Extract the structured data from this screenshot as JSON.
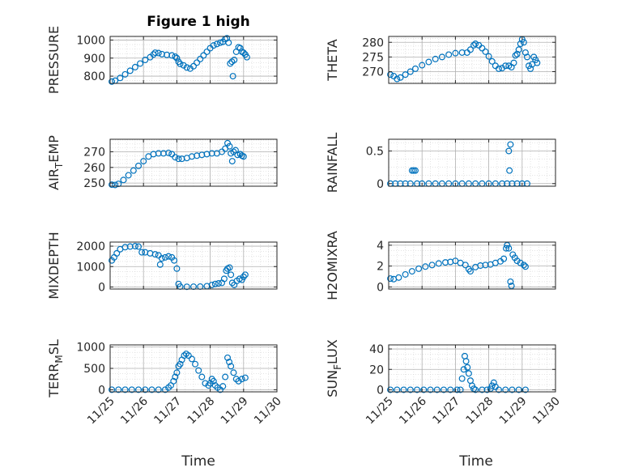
{
  "figure": {
    "title": "Figure 1 high",
    "xlabel": "Time"
  },
  "x_tick_labels": [
    "11/25",
    "11/26",
    "11/27",
    "11/28",
    "11/29",
    "11/30"
  ],
  "colors": {
    "marker": "#0072bd",
    "axis": "#262626",
    "grid": "#b0b0b0",
    "frame_bg": "#ffffff"
  },
  "chart_data": [
    {
      "type": "scatter",
      "ylabel": "PRESSURE",
      "xlim": [
        25,
        30
      ],
      "ylim": [
        760,
        1020
      ],
      "yticks": [
        800,
        900,
        1000
      ],
      "points": [
        [
          25.05,
          770
        ],
        [
          25.15,
          775
        ],
        [
          25.3,
          790
        ],
        [
          25.45,
          810
        ],
        [
          25.6,
          830
        ],
        [
          25.75,
          850
        ],
        [
          25.9,
          870
        ],
        [
          26.05,
          890
        ],
        [
          26.2,
          905
        ],
        [
          26.3,
          920
        ],
        [
          26.35,
          930
        ],
        [
          26.45,
          928
        ],
        [
          26.55,
          922
        ],
        [
          26.7,
          918
        ],
        [
          26.85,
          915
        ],
        [
          26.95,
          908
        ],
        [
          27.0,
          900
        ],
        [
          27.05,
          880
        ],
        [
          27.1,
          868
        ],
        [
          27.2,
          860
        ],
        [
          27.3,
          848
        ],
        [
          27.4,
          842
        ],
        [
          27.5,
          855
        ],
        [
          27.6,
          875
        ],
        [
          27.7,
          895
        ],
        [
          27.8,
          915
        ],
        [
          27.9,
          935
        ],
        [
          28.0,
          955
        ],
        [
          28.1,
          970
        ],
        [
          28.2,
          978
        ],
        [
          28.3,
          985
        ],
        [
          28.38,
          990
        ],
        [
          28.45,
          1005
        ],
        [
          28.5,
          1010
        ],
        [
          28.55,
          985
        ],
        [
          28.6,
          870
        ],
        [
          28.65,
          880
        ],
        [
          28.68,
          800
        ],
        [
          28.72,
          890
        ],
        [
          28.78,
          935
        ],
        [
          28.85,
          960
        ],
        [
          28.9,
          955
        ],
        [
          28.95,
          935
        ],
        [
          29.0,
          930
        ],
        [
          29.05,
          920
        ],
        [
          29.1,
          905
        ]
      ]
    },
    {
      "type": "scatter",
      "ylabel": "THETA",
      "xlim": [
        25,
        30
      ],
      "ylim": [
        266,
        282
      ],
      "yticks": [
        270,
        275,
        280
      ],
      "points": [
        [
          25.05,
          269
        ],
        [
          25.15,
          268.5
        ],
        [
          25.25,
          267.5
        ],
        [
          25.35,
          268
        ],
        [
          25.5,
          269
        ],
        [
          25.65,
          270
        ],
        [
          25.8,
          271
        ],
        [
          26.0,
          272.2
        ],
        [
          26.2,
          273.3
        ],
        [
          26.4,
          274.3
        ],
        [
          26.6,
          275
        ],
        [
          26.8,
          275.8
        ],
        [
          27.0,
          276.3
        ],
        [
          27.2,
          276.5
        ],
        [
          27.35,
          276.5
        ],
        [
          27.45,
          277.5
        ],
        [
          27.55,
          279
        ],
        [
          27.6,
          279.5
        ],
        [
          27.7,
          279
        ],
        [
          27.8,
          278
        ],
        [
          27.9,
          276.8
        ],
        [
          28.0,
          275.2
        ],
        [
          28.1,
          273.5
        ],
        [
          28.2,
          272
        ],
        [
          28.3,
          271
        ],
        [
          28.4,
          271.2
        ],
        [
          28.5,
          272
        ],
        [
          28.6,
          272
        ],
        [
          28.68,
          271.5
        ],
        [
          28.75,
          273
        ],
        [
          28.8,
          275.5
        ],
        [
          28.85,
          276
        ],
        [
          28.9,
          277.5
        ],
        [
          28.95,
          279.5
        ],
        [
          29.0,
          281
        ],
        [
          29.05,
          280
        ],
        [
          29.1,
          276.5
        ],
        [
          29.15,
          275
        ],
        [
          29.2,
          272
        ],
        [
          29.25,
          271
        ],
        [
          29.3,
          272.5
        ],
        [
          29.35,
          275
        ],
        [
          29.4,
          274
        ],
        [
          29.45,
          273
        ]
      ]
    },
    {
      "type": "scatter",
      "ylabel": "AIR_TEMP",
      "xlim": [
        25,
        30
      ],
      "ylim": [
        248,
        278
      ],
      "yticks": [
        250,
        260,
        270
      ],
      "points": [
        [
          25.05,
          249
        ],
        [
          25.15,
          248.8
        ],
        [
          25.25,
          249.5
        ],
        [
          25.4,
          252
        ],
        [
          25.55,
          255
        ],
        [
          25.7,
          258
        ],
        [
          25.85,
          261
        ],
        [
          26.0,
          264
        ],
        [
          26.15,
          267
        ],
        [
          26.3,
          268.5
        ],
        [
          26.45,
          269
        ],
        [
          26.6,
          269
        ],
        [
          26.75,
          269.3
        ],
        [
          26.85,
          268.5
        ],
        [
          26.95,
          266.5
        ],
        [
          27.05,
          265.5
        ],
        [
          27.15,
          265.5
        ],
        [
          27.3,
          266
        ],
        [
          27.45,
          267
        ],
        [
          27.6,
          267.5
        ],
        [
          27.75,
          268
        ],
        [
          27.9,
          268.5
        ],
        [
          28.05,
          269
        ],
        [
          28.2,
          269
        ],
        [
          28.35,
          270
        ],
        [
          28.45,
          272
        ],
        [
          28.52,
          275.5
        ],
        [
          28.58,
          273.5
        ],
        [
          28.62,
          269
        ],
        [
          28.66,
          264
        ],
        [
          28.7,
          270
        ],
        [
          28.76,
          271
        ],
        [
          28.82,
          268
        ],
        [
          28.9,
          268.5
        ],
        [
          28.95,
          267.5
        ],
        [
          29.0,
          267
        ]
      ]
    },
    {
      "type": "scatter",
      "ylabel": "RAINFALL",
      "xlim": [
        25,
        30
      ],
      "ylim": [
        -0.04,
        0.68
      ],
      "yticks": [
        0,
        0.5
      ],
      "points": [
        [
          25.05,
          0
        ],
        [
          25.2,
          0
        ],
        [
          25.35,
          0
        ],
        [
          25.5,
          0
        ],
        [
          25.65,
          0
        ],
        [
          25.7,
          0.2
        ],
        [
          25.75,
          0.2
        ],
        [
          25.8,
          0.2
        ],
        [
          25.85,
          0
        ],
        [
          26.0,
          0
        ],
        [
          26.2,
          0
        ],
        [
          26.4,
          0
        ],
        [
          26.6,
          0
        ],
        [
          26.8,
          0
        ],
        [
          27.0,
          0
        ],
        [
          27.2,
          0
        ],
        [
          27.4,
          0
        ],
        [
          27.6,
          0
        ],
        [
          27.8,
          0
        ],
        [
          28.0,
          0
        ],
        [
          28.2,
          0
        ],
        [
          28.4,
          0
        ],
        [
          28.55,
          0
        ],
        [
          28.6,
          0.5
        ],
        [
          28.62,
          0.2
        ],
        [
          28.65,
          0.6
        ],
        [
          28.7,
          0
        ],
        [
          28.85,
          0
        ],
        [
          29.0,
          0
        ],
        [
          29.15,
          0
        ]
      ]
    },
    {
      "type": "scatter",
      "ylabel": "MIXDEPTH",
      "xlim": [
        25,
        30
      ],
      "ylim": [
        -100,
        2200
      ],
      "yticks": [
        0,
        1000,
        2000
      ],
      "points": [
        [
          25.05,
          1300
        ],
        [
          25.12,
          1450
        ],
        [
          25.2,
          1650
        ],
        [
          25.3,
          1850
        ],
        [
          25.45,
          1950
        ],
        [
          25.6,
          1980
        ],
        [
          25.75,
          2000
        ],
        [
          25.85,
          1980
        ],
        [
          25.95,
          1700
        ],
        [
          26.05,
          1700
        ],
        [
          26.2,
          1650
        ],
        [
          26.35,
          1600
        ],
        [
          26.45,
          1550
        ],
        [
          26.5,
          1100
        ],
        [
          26.55,
          1400
        ],
        [
          26.65,
          1450
        ],
        [
          26.75,
          1500
        ],
        [
          26.85,
          1450
        ],
        [
          26.92,
          1300
        ],
        [
          27.0,
          900
        ],
        [
          27.05,
          150
        ],
        [
          27.1,
          20
        ],
        [
          27.3,
          10
        ],
        [
          27.5,
          15
        ],
        [
          27.7,
          20
        ],
        [
          27.9,
          40
        ],
        [
          28.05,
          100
        ],
        [
          28.15,
          150
        ],
        [
          28.25,
          180
        ],
        [
          28.35,
          200
        ],
        [
          28.42,
          400
        ],
        [
          28.48,
          800
        ],
        [
          28.52,
          900
        ],
        [
          28.58,
          950
        ],
        [
          28.62,
          600
        ],
        [
          28.66,
          200
        ],
        [
          28.72,
          100
        ],
        [
          28.8,
          300
        ],
        [
          28.88,
          400
        ],
        [
          28.95,
          350
        ],
        [
          29.0,
          500
        ],
        [
          29.05,
          600
        ]
      ]
    },
    {
      "type": "scatter",
      "ylabel": "H2OMIXRA",
      "xlim": [
        25,
        30
      ],
      "ylim": [
        -0.2,
        4.3
      ],
      "yticks": [
        0,
        2,
        4
      ],
      "points": [
        [
          25.05,
          0.8
        ],
        [
          25.15,
          0.75
        ],
        [
          25.3,
          0.9
        ],
        [
          25.5,
          1.2
        ],
        [
          25.7,
          1.5
        ],
        [
          25.9,
          1.75
        ],
        [
          26.1,
          1.95
        ],
        [
          26.3,
          2.1
        ],
        [
          26.5,
          2.25
        ],
        [
          26.7,
          2.35
        ],
        [
          26.85,
          2.4
        ],
        [
          27.0,
          2.5
        ],
        [
          27.15,
          2.3
        ],
        [
          27.3,
          2.1
        ],
        [
          27.4,
          1.7
        ],
        [
          27.45,
          1.5
        ],
        [
          27.6,
          1.9
        ],
        [
          27.75,
          2.05
        ],
        [
          27.9,
          2.1
        ],
        [
          28.05,
          2.15
        ],
        [
          28.2,
          2.3
        ],
        [
          28.35,
          2.45
        ],
        [
          28.45,
          2.7
        ],
        [
          28.52,
          3.7
        ],
        [
          28.55,
          4.0
        ],
        [
          28.6,
          3.7
        ],
        [
          28.65,
          0.5
        ],
        [
          28.68,
          0.1
        ],
        [
          28.72,
          3.1
        ],
        [
          28.78,
          2.8
        ],
        [
          28.85,
          2.5
        ],
        [
          28.95,
          2.3
        ],
        [
          29.05,
          2.1
        ],
        [
          29.1,
          1.95
        ]
      ]
    },
    {
      "type": "scatter",
      "ylabel": "TERR_MSL",
      "xlim": [
        25,
        30
      ],
      "ylim": [
        -50,
        1050
      ],
      "yticks": [
        0,
        500,
        1000
      ],
      "points": [
        [
          25.05,
          0
        ],
        [
          25.25,
          0
        ],
        [
          25.45,
          0
        ],
        [
          25.65,
          0
        ],
        [
          25.85,
          0
        ],
        [
          26.05,
          0
        ],
        [
          26.25,
          0
        ],
        [
          26.45,
          0
        ],
        [
          26.65,
          0
        ],
        [
          26.75,
          50
        ],
        [
          26.82,
          100
        ],
        [
          26.9,
          200
        ],
        [
          26.95,
          300
        ],
        [
          27.0,
          400
        ],
        [
          27.05,
          550
        ],
        [
          27.1,
          600
        ],
        [
          27.15,
          700
        ],
        [
          27.22,
          800
        ],
        [
          27.28,
          840
        ],
        [
          27.35,
          800
        ],
        [
          27.45,
          720
        ],
        [
          27.55,
          600
        ],
        [
          27.65,
          450
        ],
        [
          27.75,
          300
        ],
        [
          27.85,
          150
        ],
        [
          27.95,
          100
        ],
        [
          28.0,
          150
        ],
        [
          28.05,
          250
        ],
        [
          28.1,
          200
        ],
        [
          28.15,
          100
        ],
        [
          28.22,
          50
        ],
        [
          28.3,
          0
        ],
        [
          28.38,
          80
        ],
        [
          28.45,
          300
        ],
        [
          28.52,
          750
        ],
        [
          28.57,
          650
        ],
        [
          28.62,
          550
        ],
        [
          28.7,
          400
        ],
        [
          28.78,
          250
        ],
        [
          28.85,
          200
        ],
        [
          28.95,
          250
        ],
        [
          29.05,
          280
        ]
      ]
    },
    {
      "type": "scatter",
      "ylabel": "SUN_FLUX",
      "xlim": [
        25,
        30
      ],
      "ylim": [
        -2,
        44
      ],
      "yticks": [
        0,
        20,
        40
      ],
      "points": [
        [
          25.05,
          0
        ],
        [
          25.25,
          0
        ],
        [
          25.45,
          0
        ],
        [
          25.65,
          0
        ],
        [
          25.85,
          0
        ],
        [
          26.05,
          0
        ],
        [
          26.25,
          0
        ],
        [
          26.45,
          0
        ],
        [
          26.65,
          0
        ],
        [
          26.85,
          0
        ],
        [
          27.05,
          0
        ],
        [
          27.15,
          0
        ],
        [
          27.2,
          11
        ],
        [
          27.25,
          20
        ],
        [
          27.28,
          33
        ],
        [
          27.32,
          28
        ],
        [
          27.36,
          22
        ],
        [
          27.4,
          16
        ],
        [
          27.45,
          9
        ],
        [
          27.5,
          4
        ],
        [
          27.55,
          1
        ],
        [
          27.6,
          0
        ],
        [
          27.8,
          0
        ],
        [
          27.95,
          0
        ],
        [
          28.05,
          1
        ],
        [
          28.1,
          4
        ],
        [
          28.15,
          7
        ],
        [
          28.2,
          3
        ],
        [
          28.3,
          0
        ],
        [
          28.5,
          0
        ],
        [
          28.7,
          0
        ],
        [
          28.9,
          0
        ],
        [
          29.1,
          0
        ]
      ]
    }
  ]
}
